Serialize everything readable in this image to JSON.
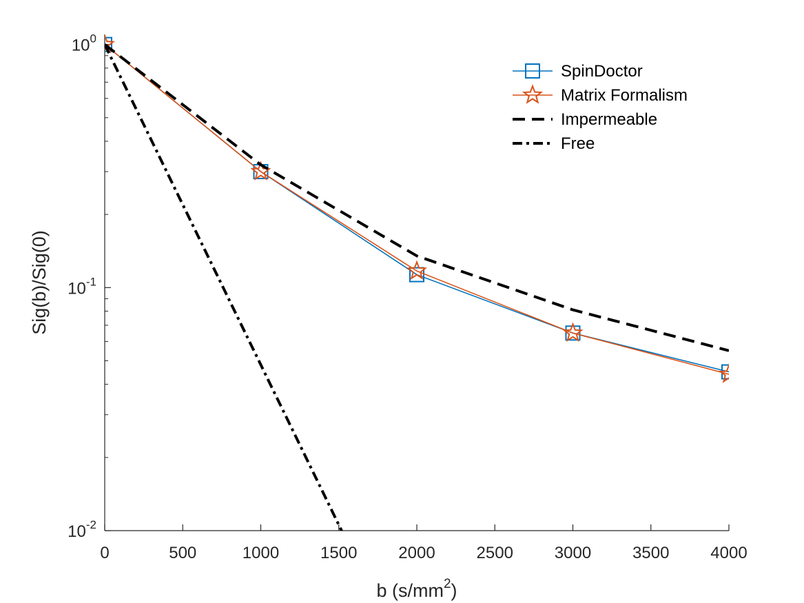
{
  "chart_data": {
    "type": "line",
    "title": "",
    "xlabel": "b (s/mm",
    "xlabel_sup": "2",
    "xlabel_suffix": ")",
    "ylabel": "Sig(b)/Sig(0)",
    "yscale": "log",
    "xlim": [
      0,
      4000
    ],
    "ylim": [
      0.01,
      1.1
    ],
    "xticks": [
      0,
      500,
      1000,
      1500,
      2000,
      2500,
      3000,
      3500,
      4000
    ],
    "yticks": [
      {
        "value": 1,
        "base": "10",
        "exp": "0"
      },
      {
        "value": 0.1,
        "base": "10",
        "exp": "-1"
      },
      {
        "value": 0.01,
        "base": "10",
        "exp": "-2"
      }
    ],
    "legend_position": "top-right",
    "grid": false,
    "series": [
      {
        "name": "SpinDoctor",
        "color": "#0072BD",
        "line_style": "solid",
        "marker": "square",
        "x": [
          0,
          1000,
          2000,
          3000,
          4000
        ],
        "y": [
          1.0,
          0.3,
          0.113,
          0.065,
          0.045
        ]
      },
      {
        "name": "Matrix Formalism",
        "color": "#D95319",
        "line_style": "solid",
        "marker": "star",
        "x": [
          0,
          1000,
          2000,
          3000,
          4000
        ],
        "y": [
          1.0,
          0.3,
          0.117,
          0.065,
          0.044
        ]
      },
      {
        "name": "Impermeable",
        "color": "#000000",
        "line_style": "dashed",
        "marker": "none",
        "x": [
          0,
          1000,
          2000,
          3000,
          4000
        ],
        "y": [
          1.0,
          0.32,
          0.135,
          0.081,
          0.055
        ]
      },
      {
        "name": "Free",
        "color": "#000000",
        "line_style": "dashdot",
        "marker": "none",
        "x": [
          0,
          1535
        ],
        "y": [
          1.0,
          0.0095
        ]
      }
    ]
  }
}
